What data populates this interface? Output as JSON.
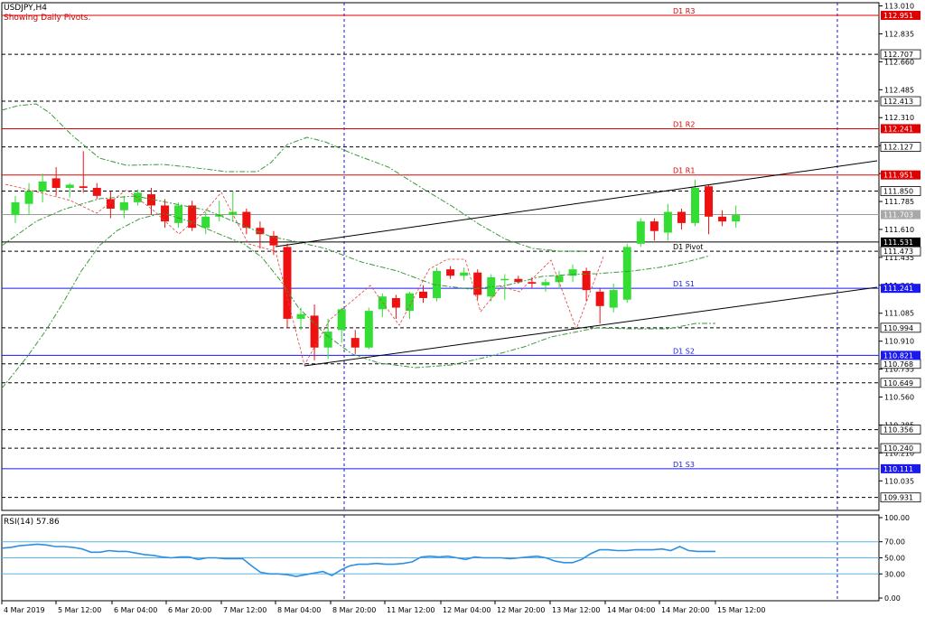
{
  "header": {
    "symbol": "USDJPY,H4",
    "subtitle": "Showing Daily Pivots."
  },
  "rsi": {
    "label": "RSI(14) 57.86",
    "levels": [
      70,
      50,
      30
    ],
    "ticks": [
      "100.00",
      "70.00",
      "50.00",
      "30.00",
      "0.00"
    ],
    "values": [
      62,
      63,
      65,
      66,
      67,
      66,
      64,
      64,
      63,
      61,
      57,
      57,
      59,
      58,
      58,
      56,
      54,
      53,
      51,
      50,
      51,
      51,
      48,
      50,
      50,
      49,
      49,
      49,
      40,
      32,
      30,
      30,
      29,
      27,
      29,
      31,
      33,
      28,
      35,
      40,
      42,
      42,
      43,
      42,
      42,
      43,
      45,
      51,
      52,
      51,
      52,
      50,
      48,
      51,
      50,
      50,
      50,
      49,
      50,
      51,
      52,
      50,
      46,
      44,
      44,
      48,
      55,
      60,
      60,
      59,
      59,
      60,
      60,
      60,
      61,
      59,
      64,
      59,
      58,
      58,
      58
    ]
  },
  "price_axis": {
    "ticks": [
      "113.010",
      "112.835",
      "112.660",
      "112.485",
      "112.310",
      "112.135",
      "111.960",
      "111.785",
      "111.610",
      "111.435",
      "111.260",
      "111.085",
      "110.910",
      "110.735",
      "110.560",
      "110.385",
      "110.210",
      "110.035"
    ],
    "ymin": 109.85,
    "ymax": 113.03
  },
  "time_axis": {
    "labels": [
      "4 Mar 2019",
      "5 Mar 12:00",
      "6 Mar 04:00",
      "6 Mar 20:00",
      "7 Mar 12:00",
      "8 Mar 04:00",
      "8 Mar 20:00",
      "11 Mar 12:00",
      "12 Mar 04:00",
      "12 Mar 20:00",
      "13 Mar 12:00",
      "14 Mar 04:00",
      "14 Mar 20:00",
      "15 Mar 12:00"
    ]
  },
  "pivots": [
    {
      "name": "D1 R3",
      "value": 112.951,
      "label": "112.951",
      "color": "#e00000"
    },
    {
      "name": "D1 R2",
      "value": 112.241,
      "label": "112.241",
      "color": "#e00000"
    },
    {
      "name": "D1 R1",
      "value": 111.951,
      "label": "111.951",
      "color": "#e00000"
    },
    {
      "name": "D1 Pivot",
      "value": 111.531,
      "label": "111.531",
      "color": "#000000"
    },
    {
      "name": "D1 S1",
      "value": 111.241,
      "label": "111.241",
      "color": "#1a1aee"
    },
    {
      "name": "D1 S2",
      "value": 110.821,
      "label": "110.821",
      "color": "#1a1aee"
    },
    {
      "name": "D1 S3",
      "value": 110.111,
      "label": "110.111",
      "color": "#1a1aee"
    }
  ],
  "dashed_levels": [
    {
      "value": 112.707,
      "label": "112.707"
    },
    {
      "value": 112.413,
      "label": "112.413"
    },
    {
      "value": 112.127,
      "label": "112.127"
    },
    {
      "value": 111.85,
      "label": "111.850"
    },
    {
      "value": 111.473,
      "label": "111.473"
    },
    {
      "value": 110.994,
      "label": "110.994"
    },
    {
      "value": 110.768,
      "label": "110.768"
    },
    {
      "value": 110.649,
      "label": "110.649"
    },
    {
      "value": 110.356,
      "label": "110.356"
    },
    {
      "value": 110.24,
      "label": "110.240"
    },
    {
      "value": 109.931,
      "label": "109.931"
    }
  ],
  "current_price": {
    "value": 111.703,
    "label": "111.703"
  },
  "colors": {
    "bull": "#33dd33",
    "bear": "#ee1111",
    "grid": "#000000",
    "rsi_line": "#2f8fe0",
    "rsi_level": "#5ab4f0",
    "ma": "#3a9a3a",
    "period_sep": "#1a1acc"
  },
  "chart_data": {
    "type": "candlestick",
    "title": "USDJPY,H4",
    "subtitle": "Showing Daily Pivots.",
    "candles": [
      {
        "o": 111.7,
        "h": 111.82,
        "l": 111.65,
        "c": 111.78
      },
      {
        "o": 111.77,
        "h": 111.9,
        "l": 111.7,
        "c": 111.85
      },
      {
        "o": 111.85,
        "h": 111.96,
        "l": 111.78,
        "c": 111.91
      },
      {
        "o": 111.93,
        "h": 112.0,
        "l": 111.82,
        "c": 111.87
      },
      {
        "o": 111.87,
        "h": 111.9,
        "l": 111.81,
        "c": 111.89
      },
      {
        "o": 111.88,
        "h": 112.1,
        "l": 111.84,
        "c": 111.87
      },
      {
        "o": 111.87,
        "h": 111.9,
        "l": 111.8,
        "c": 111.82
      },
      {
        "o": 111.8,
        "h": 111.85,
        "l": 111.68,
        "c": 111.74
      },
      {
        "o": 111.73,
        "h": 111.82,
        "l": 111.68,
        "c": 111.78
      },
      {
        "o": 111.78,
        "h": 111.86,
        "l": 111.76,
        "c": 111.84
      },
      {
        "o": 111.83,
        "h": 111.87,
        "l": 111.7,
        "c": 111.76
      },
      {
        "o": 111.76,
        "h": 111.8,
        "l": 111.62,
        "c": 111.66
      },
      {
        "o": 111.65,
        "h": 111.78,
        "l": 111.62,
        "c": 111.76
      },
      {
        "o": 111.76,
        "h": 111.79,
        "l": 111.6,
        "c": 111.62
      },
      {
        "o": 111.62,
        "h": 111.72,
        "l": 111.58,
        "c": 111.69
      },
      {
        "o": 111.69,
        "h": 111.79,
        "l": 111.66,
        "c": 111.7
      },
      {
        "o": 111.7,
        "h": 111.85,
        "l": 111.66,
        "c": 111.72
      },
      {
        "o": 111.72,
        "h": 111.74,
        "l": 111.58,
        "c": 111.62
      },
      {
        "o": 111.62,
        "h": 111.66,
        "l": 111.49,
        "c": 111.58
      },
      {
        "o": 111.57,
        "h": 111.6,
        "l": 111.45,
        "c": 111.51
      },
      {
        "o": 111.5,
        "h": 111.52,
        "l": 110.99,
        "c": 111.05
      },
      {
        "o": 111.05,
        "h": 111.12,
        "l": 110.98,
        "c": 111.08
      },
      {
        "o": 111.07,
        "h": 111.14,
        "l": 110.79,
        "c": 110.87
      },
      {
        "o": 110.87,
        "h": 111.05,
        "l": 110.8,
        "c": 110.97
      },
      {
        "o": 110.98,
        "h": 111.12,
        "l": 110.9,
        "c": 111.11
      },
      {
        "o": 110.93,
        "h": 110.98,
        "l": 110.83,
        "c": 110.87
      },
      {
        "o": 110.87,
        "h": 111.12,
        "l": 110.86,
        "c": 111.1
      },
      {
        "o": 111.11,
        "h": 111.21,
        "l": 111.06,
        "c": 111.19
      },
      {
        "o": 111.18,
        "h": 111.2,
        "l": 111.05,
        "c": 111.12
      },
      {
        "o": 111.1,
        "h": 111.22,
        "l": 111.05,
        "c": 111.21
      },
      {
        "o": 111.22,
        "h": 111.26,
        "l": 111.15,
        "c": 111.18
      },
      {
        "o": 111.18,
        "h": 111.37,
        "l": 111.16,
        "c": 111.35
      },
      {
        "o": 111.36,
        "h": 111.38,
        "l": 111.3,
        "c": 111.32
      },
      {
        "o": 111.32,
        "h": 111.37,
        "l": 111.29,
        "c": 111.34
      },
      {
        "o": 111.34,
        "h": 111.36,
        "l": 111.17,
        "c": 111.2
      },
      {
        "o": 111.19,
        "h": 111.33,
        "l": 111.16,
        "c": 111.31
      },
      {
        "o": 111.3,
        "h": 111.33,
        "l": 111.17,
        "c": 111.3
      },
      {
        "o": 111.3,
        "h": 111.32,
        "l": 111.27,
        "c": 111.28
      },
      {
        "o": 111.28,
        "h": 111.31,
        "l": 111.24,
        "c": 111.27
      },
      {
        "o": 111.26,
        "h": 111.3,
        "l": 111.22,
        "c": 111.28
      },
      {
        "o": 111.28,
        "h": 111.35,
        "l": 111.24,
        "c": 111.32
      },
      {
        "o": 111.32,
        "h": 111.39,
        "l": 111.28,
        "c": 111.36
      },
      {
        "o": 111.35,
        "h": 111.37,
        "l": 111.16,
        "c": 111.23
      },
      {
        "o": 111.22,
        "h": 111.24,
        "l": 111.02,
        "c": 111.13
      },
      {
        "o": 111.12,
        "h": 111.27,
        "l": 111.09,
        "c": 111.23
      },
      {
        "o": 111.17,
        "h": 111.52,
        "l": 111.15,
        "c": 111.5
      },
      {
        "o": 111.52,
        "h": 111.68,
        "l": 111.5,
        "c": 111.66
      },
      {
        "o": 111.66,
        "h": 111.68,
        "l": 111.54,
        "c": 111.6
      },
      {
        "o": 111.59,
        "h": 111.77,
        "l": 111.54,
        "c": 111.72
      },
      {
        "o": 111.72,
        "h": 111.74,
        "l": 111.61,
        "c": 111.65
      },
      {
        "o": 111.65,
        "h": 111.92,
        "l": 111.63,
        "c": 111.87
      },
      {
        "o": 111.88,
        "h": 111.89,
        "l": 111.58,
        "c": 111.69
      },
      {
        "o": 111.69,
        "h": 111.73,
        "l": 111.63,
        "c": 111.66
      },
      {
        "o": 111.66,
        "h": 111.76,
        "l": 111.62,
        "c": 111.7
      }
    ]
  }
}
